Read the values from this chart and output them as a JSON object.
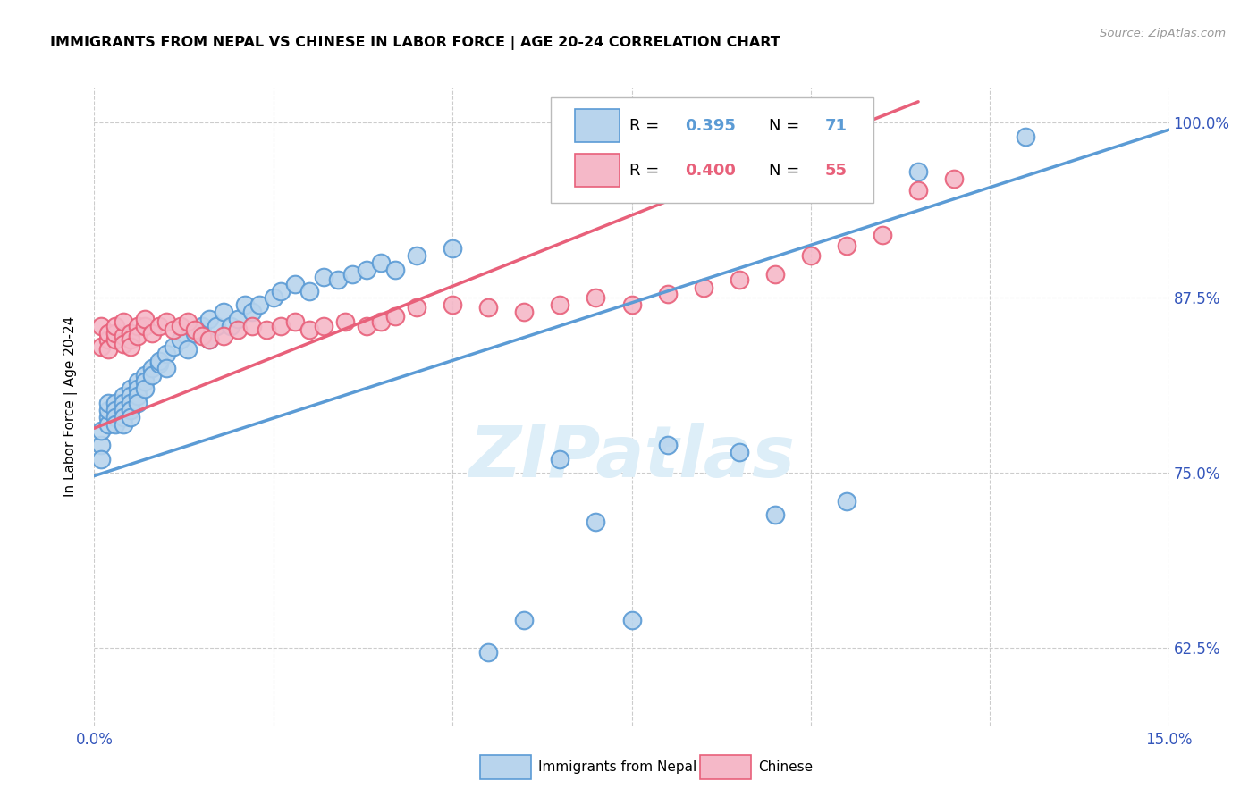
{
  "title": "IMMIGRANTS FROM NEPAL VS CHINESE IN LABOR FORCE | AGE 20-24 CORRELATION CHART",
  "source": "Source: ZipAtlas.com",
  "ylabel_label": "In Labor Force | Age 20-24",
  "legend_nepal": "Immigrants from Nepal",
  "legend_chinese": "Chinese",
  "r_nepal": "0.395",
  "n_nepal": "71",
  "r_chinese": "0.400",
  "n_chinese": "55",
  "nepal_color": "#b8d4ed",
  "chinese_color": "#f5b8c8",
  "nepal_edge_color": "#5b9bd5",
  "chinese_edge_color": "#e8607a",
  "nepal_line_color": "#5b9bd5",
  "chinese_line_color": "#e8607a",
  "watermark_color": "#ddeef8",
  "xlim": [
    0.0,
    0.15
  ],
  "ylim": [
    0.57,
    1.025
  ],
  "ytick_vals": [
    0.625,
    0.75,
    0.875,
    1.0
  ],
  "ytick_labels": [
    "62.5%",
    "75.0%",
    "87.5%",
    "100.0%"
  ],
  "xtick_vals": [
    0.0,
    0.025,
    0.05,
    0.075,
    0.1,
    0.125,
    0.15
  ],
  "nepal_line_x": [
    0.0,
    0.15
  ],
  "nepal_line_y": [
    0.748,
    0.995
  ],
  "chinese_line_x": [
    0.0,
    0.115
  ],
  "chinese_line_y": [
    0.782,
    1.015
  ],
  "nepal_scatter_x": [
    0.001,
    0.001,
    0.001,
    0.002,
    0.002,
    0.002,
    0.002,
    0.003,
    0.003,
    0.003,
    0.003,
    0.004,
    0.004,
    0.004,
    0.004,
    0.004,
    0.005,
    0.005,
    0.005,
    0.005,
    0.005,
    0.006,
    0.006,
    0.006,
    0.006,
    0.007,
    0.007,
    0.007,
    0.008,
    0.008,
    0.009,
    0.009,
    0.01,
    0.01,
    0.011,
    0.012,
    0.013,
    0.014,
    0.015,
    0.016,
    0.016,
    0.017,
    0.018,
    0.019,
    0.02,
    0.021,
    0.022,
    0.023,
    0.025,
    0.026,
    0.028,
    0.03,
    0.032,
    0.034,
    0.036,
    0.038,
    0.04,
    0.042,
    0.045,
    0.05,
    0.055,
    0.06,
    0.065,
    0.07,
    0.075,
    0.08,
    0.09,
    0.095,
    0.105,
    0.115,
    0.13
  ],
  "nepal_scatter_y": [
    0.77,
    0.78,
    0.76,
    0.79,
    0.785,
    0.795,
    0.8,
    0.8,
    0.795,
    0.79,
    0.785,
    0.805,
    0.8,
    0.795,
    0.79,
    0.785,
    0.81,
    0.805,
    0.8,
    0.795,
    0.79,
    0.815,
    0.81,
    0.805,
    0.8,
    0.82,
    0.815,
    0.81,
    0.825,
    0.82,
    0.828,
    0.83,
    0.835,
    0.825,
    0.84,
    0.845,
    0.838,
    0.85,
    0.855,
    0.845,
    0.86,
    0.855,
    0.865,
    0.855,
    0.86,
    0.87,
    0.865,
    0.87,
    0.875,
    0.88,
    0.885,
    0.88,
    0.89,
    0.888,
    0.892,
    0.895,
    0.9,
    0.895,
    0.905,
    0.91,
    0.622,
    0.645,
    0.76,
    0.715,
    0.645,
    0.77,
    0.765,
    0.72,
    0.73,
    0.965,
    0.99
  ],
  "chinese_scatter_x": [
    0.001,
    0.001,
    0.002,
    0.002,
    0.002,
    0.003,
    0.003,
    0.003,
    0.004,
    0.004,
    0.004,
    0.005,
    0.005,
    0.005,
    0.006,
    0.006,
    0.007,
    0.007,
    0.008,
    0.009,
    0.01,
    0.011,
    0.012,
    0.013,
    0.014,
    0.015,
    0.016,
    0.018,
    0.02,
    0.022,
    0.024,
    0.026,
    0.028,
    0.03,
    0.032,
    0.035,
    0.038,
    0.04,
    0.042,
    0.045,
    0.05,
    0.055,
    0.06,
    0.065,
    0.07,
    0.075,
    0.08,
    0.085,
    0.09,
    0.095,
    0.1,
    0.105,
    0.11,
    0.115,
    0.12
  ],
  "chinese_scatter_y": [
    0.84,
    0.855,
    0.845,
    0.85,
    0.838,
    0.845,
    0.85,
    0.855,
    0.848,
    0.842,
    0.858,
    0.85,
    0.845,
    0.84,
    0.855,
    0.848,
    0.855,
    0.86,
    0.85,
    0.855,
    0.858,
    0.852,
    0.855,
    0.858,
    0.852,
    0.848,
    0.845,
    0.848,
    0.852,
    0.855,
    0.852,
    0.855,
    0.858,
    0.852,
    0.855,
    0.858,
    0.855,
    0.858,
    0.862,
    0.868,
    0.87,
    0.868,
    0.865,
    0.87,
    0.875,
    0.87,
    0.878,
    0.882,
    0.888,
    0.892,
    0.905,
    0.912,
    0.92,
    0.952,
    0.96
  ]
}
